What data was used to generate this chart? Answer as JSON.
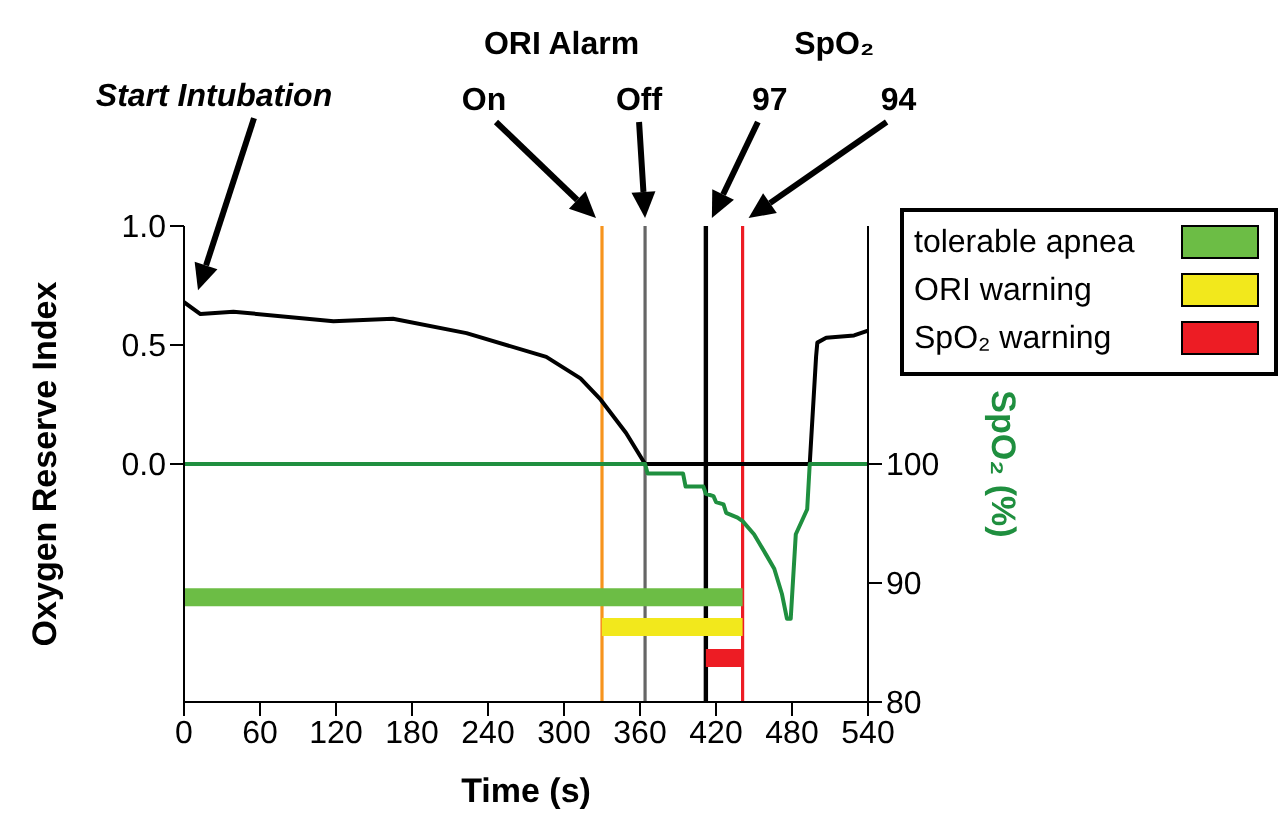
{
  "chart_data": {
    "type": "line",
    "xlabel": "Time (s)",
    "ylabel": "Oxygen Reserve Index",
    "y2label": "SpO₂ (%)",
    "xlim": [
      0,
      540
    ],
    "xticks": [
      0,
      60,
      120,
      180,
      240,
      300,
      360,
      420,
      480,
      540
    ],
    "ylim": [
      -1,
      1
    ],
    "yticks": [
      {
        "value": 0,
        "label": "0.0"
      },
      {
        "value": 0.5,
        "label": "0.5"
      },
      {
        "value": 1,
        "label": "1.0"
      }
    ],
    "y2lim": [
      80,
      120
    ],
    "y2ticks": [
      80,
      90,
      100
    ],
    "series": [
      {
        "color": "#000000",
        "x": [
          0,
          13,
          39,
          118,
          165,
          223,
          286,
          313,
          329,
          349,
          364,
          494,
          499,
          500,
          507,
          529,
          540
        ],
        "values": [
          0.68,
          0.63,
          0.64,
          0.6,
          0.61,
          0.55,
          0.45,
          0.36,
          0.27,
          0.13,
          0,
          0,
          0.45,
          0.51,
          0.53,
          0.54,
          0.56
        ]
      },
      {
        "color": "#1f8f3f",
        "axis": "y2",
        "x": [
          0,
          364,
          366,
          394,
          396,
          410,
          412,
          418,
          420,
          426,
          428,
          437,
          441,
          450,
          460,
          466,
          472,
          476,
          479,
          483,
          492,
          494,
          540
        ],
        "values": [
          100,
          100,
          99.2,
          99.2,
          98.1,
          98.1,
          97.5,
          97.3,
          96.8,
          96.6,
          95.9,
          95.5,
          95.2,
          94.1,
          92.3,
          91.2,
          89.1,
          87,
          87,
          94.1,
          96.2,
          100,
          100
        ]
      },
      {
        "name": "tolerable apnea",
        "color": "#6cbd45",
        "axis": "y2",
        "x": [
          0,
          441
        ],
        "values": [
          88.8,
          88.8
        ]
      },
      {
        "name": "ORI warning",
        "color": "#f2e81c",
        "axis": "y2",
        "x": [
          330,
          441
        ],
        "values": [
          86.3,
          86.3
        ]
      },
      {
        "name": "SpO₂ warning",
        "color": "#ed1c24",
        "axis": "y2",
        "x": [
          412,
          441
        ],
        "values": [
          83.7,
          83.7
        ]
      }
    ],
    "ref_lines": [
      {
        "axis": "x",
        "value": 330,
        "color": "#f7941d"
      },
      {
        "axis": "x",
        "value": 364,
        "color": "#666666"
      },
      {
        "axis": "x",
        "value": 412,
        "color": "#000000"
      },
      {
        "axis": "x",
        "value": 441,
        "color": "#ed1c24"
      }
    ],
    "annotations": [
      "Start Intubation",
      "ORI Alarm",
      "On",
      "Off",
      "SpO₂",
      "97",
      "94"
    ],
    "legend": "top right",
    "marker": "none",
    "line_style": "solid",
    "grid": false
  }
}
